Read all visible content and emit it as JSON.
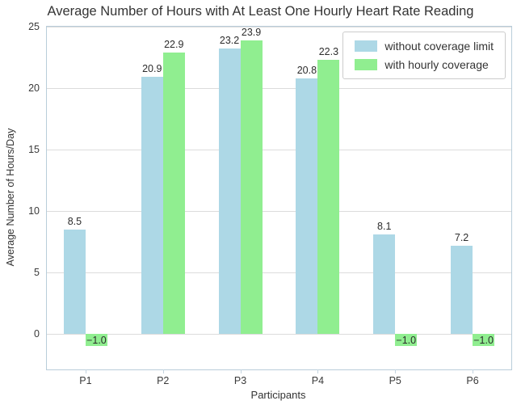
{
  "title": "Average Number of Hours with At Least One Hourly Heart Rate Reading",
  "chart_data": {
    "type": "bar",
    "categories": [
      "P1",
      "P2",
      "P3",
      "P4",
      "P5",
      "P6"
    ],
    "series": [
      {
        "name": "without coverage limit",
        "color": "#add8e6",
        "values": [
          8.5,
          20.9,
          23.2,
          20.8,
          8.1,
          7.2
        ]
      },
      {
        "name": "with hourly coverage",
        "color": "#90ee90",
        "values": [
          -1.0,
          22.9,
          23.9,
          22.3,
          -1.0,
          -1.0
        ]
      }
    ],
    "xlabel": "Participants",
    "ylabel": "Average Number of Hours/Day",
    "yticks": [
      0,
      5,
      10,
      15,
      20,
      25
    ],
    "ylim": [
      -2.9,
      25
    ],
    "grid": true,
    "legend_position": "upper right",
    "colors": {
      "grid": "#dcdcdc",
      "spine": "#b9cdda",
      "text": "#333333"
    }
  }
}
